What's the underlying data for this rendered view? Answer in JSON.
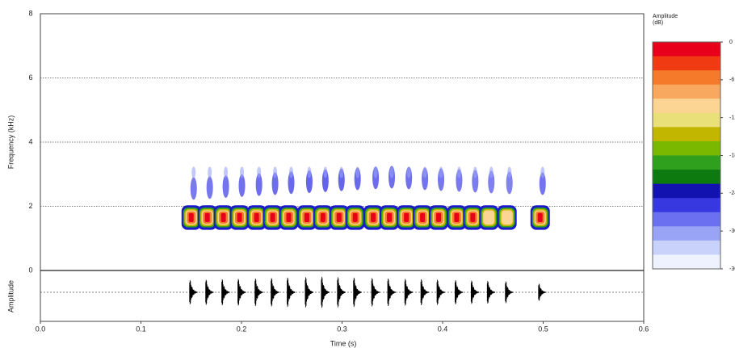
{
  "chart_data": {
    "type": "spectrogram",
    "xlabel": "Time (s)",
    "ylabel": "Frequency (kHz)",
    "waveform_label": "Amplitude",
    "xlim": [
      0,
      0.6
    ],
    "xticks": [
      {
        "value": 0,
        "label": "0.0"
      },
      0.1,
      0.2,
      0.3,
      0.4,
      0.5,
      0.6
    ],
    "ylim": [
      0,
      8
    ],
    "yticks": [
      0,
      2,
      4,
      6,
      8
    ],
    "grid": true,
    "pulse_times": [
      0.15,
      0.166,
      0.182,
      0.198,
      0.215,
      0.231,
      0.247,
      0.265,
      0.281,
      0.297,
      0.313,
      0.331,
      0.347,
      0.364,
      0.38,
      0.396,
      0.414,
      0.43,
      0.446,
      0.464,
      0.497
    ],
    "band_khz": [
      1.3,
      2.0
    ],
    "colorbar": {
      "title_lines": [
        "Amplitude",
        "(dB)"
      ],
      "lim": [
        -36,
        0
      ],
      "ticks": [
        0,
        -6,
        -12,
        -18,
        -24,
        -30,
        -36
      ],
      "colors": [
        "#e8001a",
        "#f03a12",
        "#f57a2a",
        "#f9a860",
        "#fcd494",
        "#e9e07a",
        "#c2b600",
        "#7ab800",
        "#2ea01e",
        "#0d7a10",
        "#1212b0",
        "#3838e0",
        "#6a70f0",
        "#9aa4f6",
        "#c8d2fa",
        "#eef2fe"
      ]
    }
  }
}
